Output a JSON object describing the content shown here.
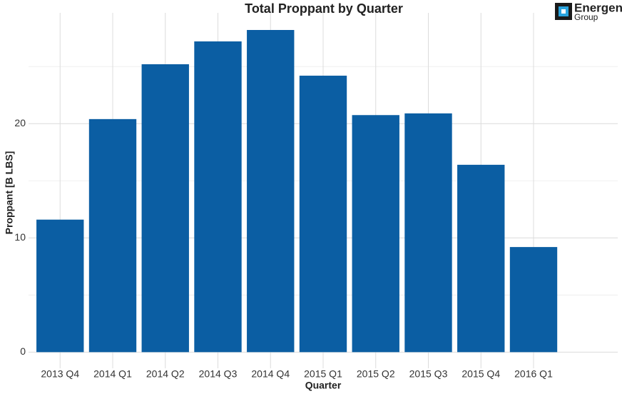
{
  "chart_data": {
    "type": "bar",
    "title": "Total Proppant by Quarter",
    "x_label": "Quarter",
    "y_label": "Proppant [B LBS]",
    "logo": {
      "name": "Energent",
      "sub": "Group"
    },
    "categories": [
      "2013 Q4",
      "2014 Q1",
      "2014 Q2",
      "2014 Q3",
      "2014 Q4",
      "2015 Q1",
      "2015 Q2",
      "2015 Q3",
      "2015 Q4",
      "2016 Q1"
    ],
    "values": [
      11.6,
      20.4,
      25.2,
      27.2,
      28.2,
      24.2,
      20.75,
      20.9,
      16.4,
      9.2
    ],
    "color": "#0b5ea3",
    "ylim": [
      -1.415,
      29.7
    ],
    "yticks": [
      0,
      10,
      20
    ],
    "yminorticks": [
      5,
      15,
      25
    ],
    "grid": true
  }
}
